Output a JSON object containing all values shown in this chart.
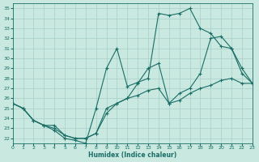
{
  "xlabel": "Humidex (Indice chaleur)",
  "bg_color": "#c8e8e0",
  "line_color": "#1a6e65",
  "grid_color": "#a8cfc8",
  "xlim": [
    0,
    23
  ],
  "ylim": [
    21.5,
    35.5
  ],
  "xticks": [
    0,
    1,
    2,
    3,
    4,
    5,
    6,
    7,
    8,
    9,
    10,
    11,
    12,
    13,
    14,
    15,
    16,
    17,
    18,
    19,
    20,
    21,
    22,
    23
  ],
  "yticks": [
    22,
    23,
    24,
    25,
    26,
    27,
    28,
    29,
    30,
    31,
    32,
    33,
    34,
    35
  ],
  "line1_y": [
    25.5,
    25.0,
    23.8,
    23.3,
    22.8,
    22.0,
    21.8,
    21.5,
    25.0,
    29.0,
    31.0,
    27.2,
    27.6,
    28.0,
    34.5,
    34.3,
    34.5,
    35.0,
    33.0,
    32.5,
    31.2,
    31.0,
    28.5,
    27.5
  ],
  "line2_y": [
    25.5,
    25.0,
    23.8,
    23.3,
    23.3,
    22.3,
    22.0,
    22.0,
    22.5,
    25.0,
    25.5,
    26.0,
    26.3,
    26.8,
    27.0,
    25.5,
    25.8,
    26.5,
    27.0,
    27.3,
    27.8,
    28.0,
    27.5,
    27.5
  ],
  "line3_y": [
    25.5,
    25.0,
    23.8,
    23.3,
    23.0,
    22.3,
    22.0,
    22.0,
    22.5,
    24.5,
    25.5,
    26.0,
    27.5,
    29.0,
    29.5,
    25.5,
    26.5,
    27.0,
    28.5,
    32.0,
    32.2,
    31.0,
    29.0,
    27.5
  ]
}
